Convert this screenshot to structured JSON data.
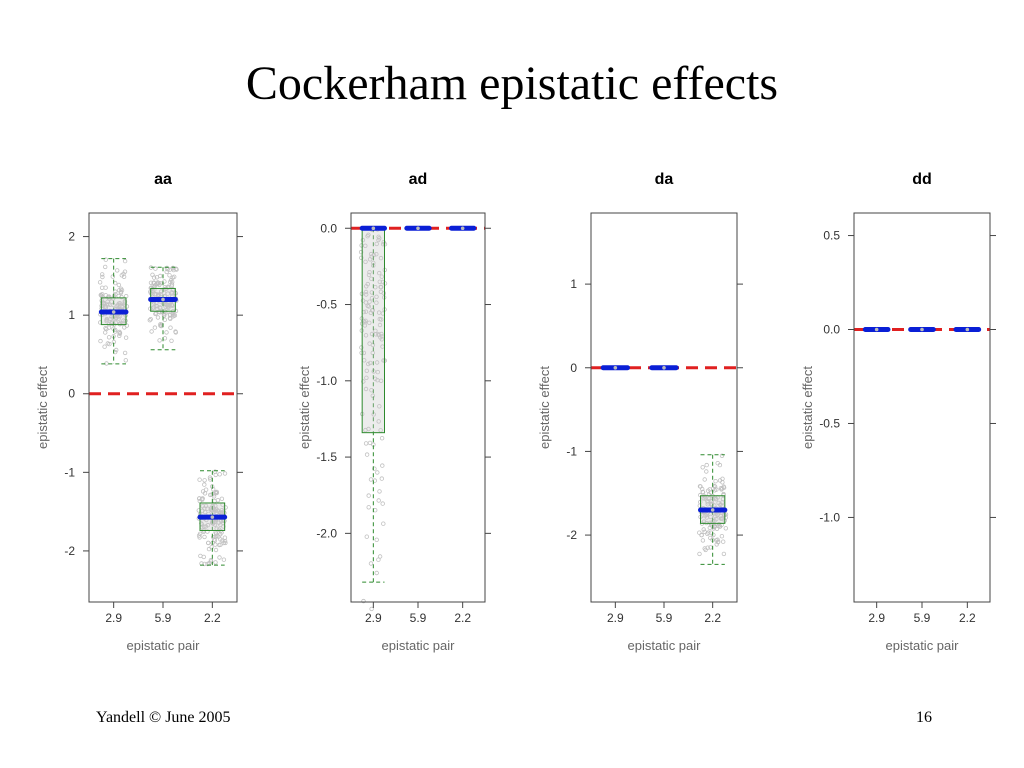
{
  "title": "Cockerham epistatic effects",
  "footer": {
    "left": "Yandell © June 2005",
    "right": "16"
  },
  "colors": {
    "median": "#0a1fd6",
    "zero_line": "#e02020",
    "box": "#2e8a2e",
    "points": "#c0c0c0",
    "frame": "#444444"
  },
  "chart_data": [
    {
      "type": "box",
      "title": "aa",
      "xlabel": "epistatic pair",
      "ylabel": "epistatic effect",
      "categories": [
        "2.9",
        "5.9",
        "2.2"
      ],
      "ylim": [
        -2.65,
        2.3
      ],
      "yticks": [
        -2,
        -1,
        0,
        1,
        2
      ],
      "ytick_labels": [
        "-2",
        "-1",
        "0",
        "1",
        "2"
      ],
      "reference_line": 0,
      "boxes": [
        {
          "min": 0.38,
          "q1": 0.88,
          "median": 1.04,
          "q3": 1.22,
          "max": 1.72
        },
        {
          "min": 0.56,
          "q1": 1.05,
          "median": 1.2,
          "q3": 1.34,
          "max": 1.61
        },
        {
          "min": -2.18,
          "q1": -1.74,
          "median": -1.57,
          "q3": -1.39,
          "max": -0.98
        }
      ]
    },
    {
      "type": "box",
      "title": "ad",
      "xlabel": "epistatic pair",
      "ylabel": "epistatic effect",
      "categories": [
        "2.9",
        "5.9",
        "2.2"
      ],
      "ylim": [
        -2.45,
        0.1
      ],
      "yticks": [
        -2.0,
        -1.5,
        -1.0,
        -0.5,
        0.0
      ],
      "ytick_labels": [
        "-2.0",
        "-1.5",
        "-1.0",
        "-0.5",
        "0.0"
      ],
      "reference_line": 0,
      "boxes": [
        {
          "min": -2.32,
          "q1": -1.34,
          "median": 0.0,
          "q3": 0.0,
          "max": 0.0
        },
        {
          "min": 0.0,
          "q1": 0.0,
          "median": 0.0,
          "q3": 0.0,
          "max": 0.0
        },
        {
          "min": 0.0,
          "q1": 0.0,
          "median": 0.0,
          "q3": 0.0,
          "max": 0.0
        }
      ]
    },
    {
      "type": "box",
      "title": "da",
      "xlabel": "epistatic pair",
      "ylabel": "epistatic effect",
      "categories": [
        "2.9",
        "5.9",
        "2.2"
      ],
      "ylim": [
        -2.8,
        1.85
      ],
      "yticks": [
        -2,
        -1,
        0,
        1
      ],
      "ytick_labels": [
        "-2",
        "-1",
        "0",
        "1"
      ],
      "reference_line": 0,
      "boxes": [
        {
          "min": 0.0,
          "q1": 0.0,
          "median": 0.0,
          "q3": 0.0,
          "max": 0.0
        },
        {
          "min": 0.0,
          "q1": 0.0,
          "median": 0.0,
          "q3": 0.0,
          "max": 0.0
        },
        {
          "min": -2.35,
          "q1": -1.86,
          "median": -1.7,
          "q3": -1.53,
          "max": -1.04
        }
      ]
    },
    {
      "type": "box",
      "title": "dd",
      "xlabel": "epistatic pair",
      "ylabel": "epistatic effect",
      "categories": [
        "2.9",
        "5.9",
        "2.2"
      ],
      "ylim": [
        -1.45,
        0.62
      ],
      "yticks": [
        -1.0,
        -0.5,
        0.0,
        0.5
      ],
      "ytick_labels": [
        "-1.0",
        "-0.5",
        "0.0",
        "0.5"
      ],
      "reference_line": 0,
      "boxes": [
        {
          "min": 0.0,
          "q1": 0.0,
          "median": 0.0,
          "q3": 0.0,
          "max": 0.0
        },
        {
          "min": 0.0,
          "q1": 0.0,
          "median": 0.0,
          "q3": 0.0,
          "max": 0.0
        },
        {
          "min": 0.0,
          "q1": 0.0,
          "median": 0.0,
          "q3": 0.0,
          "max": 0.0
        }
      ]
    }
  ]
}
